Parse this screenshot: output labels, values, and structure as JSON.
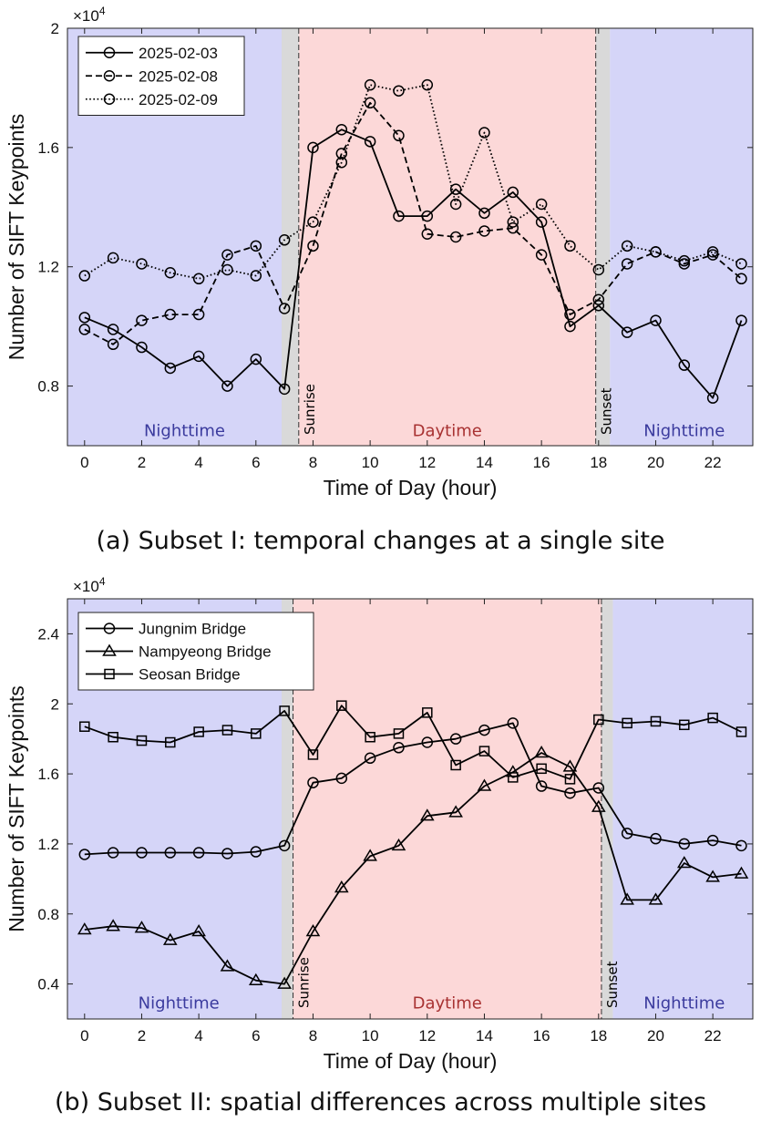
{
  "captions": {
    "a": "(a) Subset I: temporal changes at a single site",
    "b": "(b) Subset II: spatial differences across multiple sites"
  },
  "colors": {
    "night": "#d5d5f8",
    "day": "#fcd8d8",
    "twilight": "#d9d9d9",
    "night_text": "#3b3b9e",
    "day_text": "#a83232",
    "line": "#000000"
  },
  "chart_data": [
    {
      "type": "line",
      "xlabel": "Time of Day (hour)",
      "ylabel": "Number of SIFT Keypoints",
      "y_exponent": "×10",
      "y_exponent_power": "4",
      "xlim": [
        -0.6,
        23.4
      ],
      "ylim": [
        0.6,
        2.0
      ],
      "xticks": [
        0,
        2,
        4,
        6,
        8,
        10,
        12,
        14,
        16,
        18,
        20,
        22
      ],
      "xtick_labels": [
        "0",
        "2",
        "4",
        "6",
        "8",
        "10",
        "12",
        "14",
        "16",
        "18",
        "20",
        "22"
      ],
      "yticks": [
        0.8,
        1.2,
        1.6,
        2.0
      ],
      "ytick_labels": [
        "0.8",
        "1.2",
        "1.6",
        "2"
      ],
      "grid": false,
      "legend_position": "top-left",
      "regions": [
        {
          "kind": "night",
          "from": -0.6,
          "to": 6.9,
          "label": "Nighttime"
        },
        {
          "kind": "twilight",
          "from": 6.9,
          "to": 7.5
        },
        {
          "kind": "day",
          "from": 7.5,
          "to": 17.9,
          "label": "Daytime"
        },
        {
          "kind": "twilight",
          "from": 17.9,
          "to": 18.4
        },
        {
          "kind": "night",
          "from": 18.4,
          "to": 23.4,
          "label": "Nighttime"
        }
      ],
      "region_label_y": 0.65,
      "region_label_x": [
        3.5,
        12.7,
        21.0
      ],
      "markers": [
        {
          "x": 7.5,
          "label": "Sunrise"
        },
        {
          "x": 17.9,
          "label": "Sunset"
        }
      ],
      "series": [
        {
          "name": "2025-02-03",
          "dash": "solid",
          "marker": "circle",
          "x": [
            0,
            1,
            2,
            3,
            4,
            5,
            6,
            7,
            8,
            9,
            10,
            11,
            12,
            13,
            14,
            15,
            16,
            17,
            18,
            19,
            20,
            21,
            22,
            23
          ],
          "y": [
            1.03,
            0.99,
            0.93,
            0.86,
            0.9,
            0.8,
            0.89,
            0.79,
            1.6,
            1.66,
            1.62,
            1.37,
            1.37,
            1.46,
            1.38,
            1.45,
            1.35,
            1.0,
            1.07,
            0.98,
            1.02,
            0.87,
            0.76,
            1.02
          ]
        },
        {
          "name": "2025-02-08",
          "dash": "dashed",
          "marker": "circle",
          "x": [
            0,
            1,
            2,
            3,
            4,
            5,
            6,
            7,
            8,
            9,
            10,
            11,
            12,
            13,
            14,
            15,
            16,
            17,
            18,
            19,
            20,
            21,
            22,
            23
          ],
          "y": [
            0.99,
            0.94,
            1.02,
            1.04,
            1.04,
            1.24,
            1.27,
            1.06,
            1.27,
            1.58,
            1.75,
            1.64,
            1.31,
            1.3,
            1.32,
            1.33,
            1.24,
            1.04,
            1.09,
            1.21,
            1.25,
            1.21,
            1.24,
            1.16
          ]
        },
        {
          "name": "2025-02-09",
          "dash": "dotted",
          "marker": "circle",
          "x": [
            0,
            1,
            2,
            3,
            4,
            5,
            6,
            7,
            8,
            9,
            10,
            11,
            12,
            13,
            14,
            15,
            16,
            17,
            18,
            19,
            20,
            21,
            22,
            23
          ],
          "y": [
            1.17,
            1.23,
            1.21,
            1.18,
            1.16,
            1.19,
            1.17,
            1.29,
            1.35,
            1.55,
            1.81,
            1.79,
            1.81,
            1.41,
            1.65,
            1.35,
            1.41,
            1.27,
            1.19,
            1.27,
            1.25,
            1.22,
            1.25,
            1.21
          ]
        }
      ]
    },
    {
      "type": "line",
      "xlabel": "Time of Day (hour)",
      "ylabel": "Number of SIFT Keypoints",
      "y_exponent": "×10",
      "y_exponent_power": "4",
      "xlim": [
        -0.6,
        23.4
      ],
      "ylim": [
        0.2,
        2.6
      ],
      "xticks": [
        0,
        2,
        4,
        6,
        8,
        10,
        12,
        14,
        16,
        18,
        20,
        22
      ],
      "xtick_labels": [
        "0",
        "2",
        "4",
        "6",
        "8",
        "10",
        "12",
        "14",
        "16",
        "18",
        "20",
        "22"
      ],
      "yticks": [
        0.4,
        0.8,
        1.2,
        1.6,
        2.0,
        2.4
      ],
      "ytick_labels": [
        "0.4",
        "0.8",
        "1.2",
        "1.6",
        "2",
        "2.4"
      ],
      "grid": false,
      "legend_position": "top-left",
      "regions": [
        {
          "kind": "night",
          "from": -0.6,
          "to": 6.9,
          "label": "Nighttime"
        },
        {
          "kind": "twilight",
          "from": 6.9,
          "to": 7.3
        },
        {
          "kind": "day",
          "from": 7.3,
          "to": 18.1,
          "label": "Daytime"
        },
        {
          "kind": "twilight",
          "from": 18.1,
          "to": 18.5
        },
        {
          "kind": "night",
          "from": 18.5,
          "to": 23.4,
          "label": "Nighttime"
        }
      ],
      "region_label_y": 0.29,
      "region_label_x": [
        3.3,
        12.7,
        21.0
      ],
      "markers": [
        {
          "x": 7.3,
          "label": "Sunrise"
        },
        {
          "x": 18.1,
          "label": "Sunset"
        }
      ],
      "series": [
        {
          "name": "Jungnim Bridge",
          "dash": "solid",
          "marker": "circle",
          "x": [
            0,
            1,
            2,
            3,
            4,
            5,
            6,
            7,
            8,
            9,
            10,
            11,
            12,
            13,
            14,
            15,
            16,
            17,
            18,
            19,
            20,
            21,
            22,
            23
          ],
          "y": [
            1.14,
            1.15,
            1.15,
            1.15,
            1.15,
            1.145,
            1.155,
            1.19,
            1.55,
            1.575,
            1.69,
            1.75,
            1.78,
            1.8,
            1.85,
            1.89,
            1.53,
            1.49,
            1.52,
            1.26,
            1.23,
            1.2,
            1.22,
            1.19
          ]
        },
        {
          "name": "Nampyeong Bridge",
          "dash": "solid",
          "marker": "triangle",
          "x": [
            0,
            1,
            2,
            3,
            4,
            5,
            6,
            7,
            8,
            9,
            10,
            11,
            12,
            13,
            14,
            15,
            16,
            17,
            18,
            19,
            20,
            21,
            22,
            23
          ],
          "y": [
            0.71,
            0.73,
            0.72,
            0.65,
            0.7,
            0.5,
            0.42,
            0.4,
            0.7,
            0.95,
            1.13,
            1.19,
            1.36,
            1.38,
            1.53,
            1.61,
            1.72,
            1.64,
            1.41,
            0.88,
            0.88,
            1.09,
            1.01,
            1.03
          ]
        },
        {
          "name": "Seosan Bridge",
          "dash": "solid",
          "marker": "square",
          "x": [
            0,
            1,
            2,
            3,
            4,
            5,
            6,
            7,
            8,
            9,
            10,
            11,
            12,
            13,
            14,
            15,
            16,
            17,
            18,
            19,
            20,
            21,
            22,
            23
          ],
          "y": [
            1.87,
            1.81,
            1.79,
            1.78,
            1.84,
            1.85,
            1.83,
            1.96,
            1.71,
            1.99,
            1.81,
            1.83,
            1.95,
            1.65,
            1.73,
            1.58,
            1.63,
            1.57,
            1.91,
            1.89,
            1.9,
            1.88,
            1.92,
            1.84
          ]
        }
      ]
    }
  ]
}
